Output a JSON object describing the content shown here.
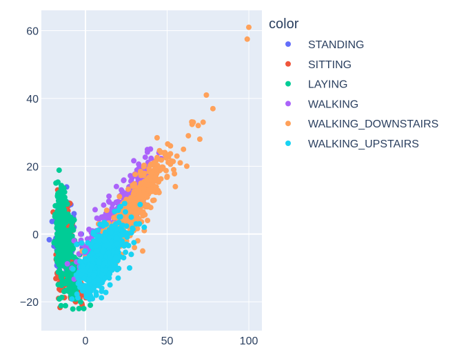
{
  "chart_data": {
    "type": "scatter",
    "legend_title": "color",
    "legend_position": "right",
    "grid": true,
    "xlim": [
      -27,
      108
    ],
    "ylim": [
      -28.5,
      66
    ],
    "x_ticks": [
      0,
      50,
      100
    ],
    "y_ticks": [
      -20,
      0,
      20,
      40,
      60
    ],
    "colors": {
      "plot_bg": "#e5ecf6",
      "grid": "#ffffff",
      "text": "#2a3f5f"
    },
    "series": [
      {
        "name": "STANDING",
        "color": "#636efa",
        "clusters": [
          {
            "cx": -14,
            "cy": -1,
            "sx": 2.5,
            "sy": 5,
            "n": 140,
            "rho": 0
          },
          {
            "cx": -11,
            "cy": 3,
            "sx": 2,
            "sy": 3,
            "n": 25,
            "rho": 0
          }
        ],
        "points": [
          [
            -7,
            6
          ],
          [
            -7,
            2
          ],
          [
            -5,
            -3
          ],
          [
            -2,
            -4
          ],
          [
            -2.5,
            0
          ]
        ]
      },
      {
        "name": "SITTING",
        "color": "#ef553b",
        "clusters": [
          {
            "cx": -13,
            "cy": -5,
            "sx": 2.5,
            "sy": 7,
            "n": 150,
            "rho": 0
          },
          {
            "cx": -5,
            "cy": -16,
            "sx": 2,
            "sy": 2.5,
            "n": 60,
            "rho": 0
          }
        ],
        "points": [
          [
            -17,
            13
          ],
          [
            -16,
            12
          ],
          [
            -9,
            -19
          ],
          [
            -6,
            -20
          ],
          [
            -2,
            -21
          ],
          [
            -1,
            -18
          ],
          [
            -4,
            -17
          ]
        ]
      },
      {
        "name": "LAYING",
        "color": "#00cc96",
        "clusters": [
          {
            "cx": -15.5,
            "cy": 4,
            "sx": 1.5,
            "sy": 5,
            "n": 160,
            "rho": 0
          },
          {
            "cx": -12,
            "cy": -5,
            "sx": 2.5,
            "sy": 5,
            "n": 220,
            "rho": 0.35
          },
          {
            "cx": -7,
            "cy": -13,
            "sx": 2.2,
            "sy": 3,
            "n": 110,
            "rho": 0.5
          }
        ],
        "points": [
          [
            -17,
            11
          ],
          [
            -16.5,
            12
          ],
          [
            -3,
            -20
          ],
          [
            -1,
            -22
          ],
          [
            3,
            -21
          ],
          [
            -10,
            -16
          ],
          [
            -4,
            -22
          ]
        ]
      },
      {
        "name": "WALKING",
        "color": "#ab63fa",
        "clusters": [
          {
            "cx": 16,
            "cy": 3,
            "sx": 9,
            "sy": 6,
            "n": 260,
            "rho": 0.82
          },
          {
            "cx": 30,
            "cy": 13,
            "sx": 6,
            "sy": 5,
            "n": 90,
            "rho": 0.7
          }
        ],
        "points": [
          [
            45,
            24
          ],
          [
            40,
            18
          ],
          [
            33,
            16
          ],
          [
            27,
            14
          ],
          [
            22,
            13
          ],
          [
            35,
            19
          ],
          [
            -7,
            -2
          ],
          [
            -3,
            0
          ],
          [
            -2,
            -3
          ],
          [
            3,
            -7
          ]
        ]
      },
      {
        "name": "WALKING_DOWNSTAIRS",
        "color": "#ffa15a",
        "clusters": [
          {
            "cx": 33,
            "cy": 10,
            "sx": 9,
            "sy": 7,
            "n": 320,
            "rho": 0.88
          },
          {
            "cx": 18,
            "cy": -1,
            "sx": 7,
            "sy": 6,
            "n": 120,
            "rho": 0.75
          }
        ],
        "points": [
          [
            100,
            61
          ],
          [
            99,
            57.5
          ],
          [
            74,
            41
          ],
          [
            78,
            37
          ],
          [
            72,
            33
          ],
          [
            69,
            32
          ],
          [
            66,
            33
          ],
          [
            63,
            29
          ],
          [
            70,
            28
          ],
          [
            60,
            25
          ],
          [
            56,
            23
          ],
          [
            52,
            26
          ],
          [
            48,
            24
          ],
          [
            58,
            21
          ],
          [
            62,
            20
          ],
          [
            54,
            19
          ],
          [
            50,
            17
          ],
          [
            45,
            16
          ],
          [
            55,
            14
          ],
          [
            42,
            10
          ],
          [
            38,
            4
          ],
          [
            36,
            1
          ],
          [
            32,
            -2
          ],
          [
            30,
            -4
          ],
          [
            35,
            -5
          ],
          [
            28,
            -6
          ],
          [
            8,
            3
          ],
          [
            10,
            3
          ],
          [
            13,
            7
          ],
          [
            -2,
            -5
          ],
          [
            0,
            -7
          ],
          [
            2,
            -9
          ]
        ]
      },
      {
        "name": "WALKING_UPSTAIRS",
        "color": "#19d3f3",
        "clusters": [
          {
            "cx": 12,
            "cy": -6,
            "sx": 6.5,
            "sy": 5,
            "n": 420,
            "rho": 0.6
          },
          {
            "cx": 4,
            "cy": -10,
            "sx": 4,
            "sy": 3.5,
            "n": 160,
            "rho": 0.4
          }
        ],
        "points": [
          [
            24,
            9
          ],
          [
            21,
            8
          ],
          [
            28,
            5
          ],
          [
            33,
            3
          ],
          [
            36,
            2
          ],
          [
            31,
            3
          ],
          [
            25,
            -3
          ],
          [
            28,
            -6
          ],
          [
            27,
            -10
          ],
          [
            20,
            -13
          ],
          [
            15,
            -15
          ],
          [
            10,
            -16
          ],
          [
            5,
            -16
          ],
          [
            3,
            -17
          ],
          [
            -1,
            -13
          ],
          [
            -3,
            -12
          ],
          [
            0,
            -11
          ]
        ]
      }
    ]
  }
}
